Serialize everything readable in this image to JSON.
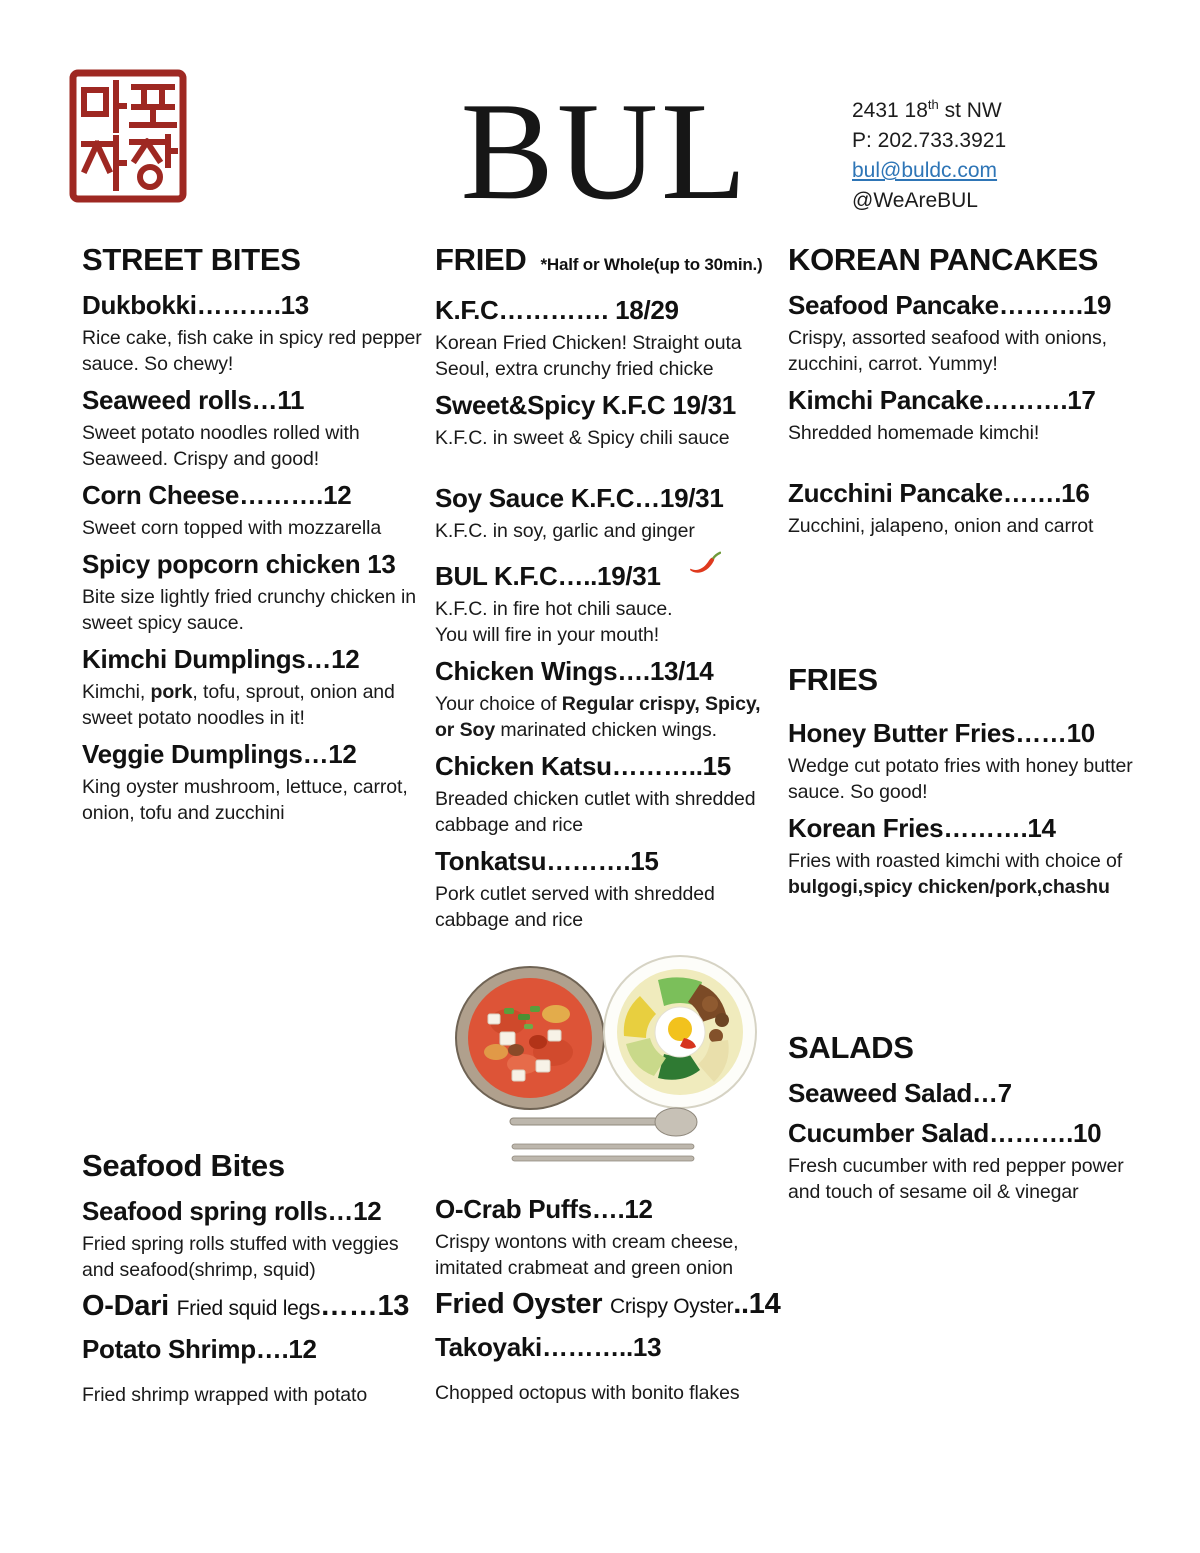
{
  "header": {
    "logo": {
      "icon": "korean-seal-stamp-icon",
      "text_top": "마포",
      "text_bottom": "자장",
      "color": "#9e2822"
    },
    "title": "BUL",
    "contact": {
      "address_pre": "2431 18",
      "address_sup": "th",
      "address_post": " st NW",
      "phone": "P: 202.733.3921",
      "email": "bul@buldc.com",
      "email_color": "#2e75b6",
      "social": "@WeAreBUL"
    }
  },
  "sections": [
    {
      "id": "street-bites",
      "title": "STREET BITES",
      "items": [
        {
          "name": "Dukbokki……….13",
          "desc": "Rice cake, fish cake in spicy red pepper sauce. So chewy!"
        },
        {
          "name": "Seaweed rolls…11",
          "desc": "Sweet potato noodles rolled with Seaweed. Crispy and good!"
        },
        {
          "name": "Corn Cheese……….12",
          "desc": "Sweet corn topped with mozzarella"
        },
        {
          "name": "Spicy popcorn chicken 13",
          "desc": "Bite size lightly fried crunchy chicken in sweet spicy sauce."
        },
        {
          "name": "Kimchi Dumplings…12",
          "desc_parts": [
            {
              "t": "Kimchi, "
            },
            {
              "t": "pork",
              "b": true
            },
            {
              "t": ", tofu, sprout, onion and sweet potato noodles in it!"
            }
          ]
        },
        {
          "name": "Veggie Dumplings…12",
          "desc": "King oyster mushroom, lettuce, carrot, onion, tofu and zucchini"
        }
      ]
    },
    {
      "id": "fried",
      "title": "FRIED",
      "note": "*Half or Whole(up to 30min.)",
      "items": [
        {
          "name": "K.F.C…………. 18/29",
          "desc": "Korean Fried Chicken! Straight outa Seoul, extra crunchy fried chicke"
        },
        {
          "name": "Sweet&Spicy K.F.C 19/31",
          "desc": "K.F.C. in sweet & Spicy chili sauce"
        },
        {
          "name": "Soy Sauce K.F.C…19/31",
          "desc": "K.F.C. in soy, garlic and ginger",
          "gap_before": true
        },
        {
          "name": "BUL K.F.C…..19/31",
          "icon": "chili-pepper-icon",
          "desc_lines": [
            "K.F.C. in fire hot chili sauce.",
            "You will fire in your mouth!"
          ]
        },
        {
          "name": "Chicken Wings….13/14",
          "desc_parts": [
            {
              "t": "Your choice of "
            },
            {
              "t": "Regular crispy, Spicy, or Soy",
              "b": true
            },
            {
              "t": " marinated chicken wings."
            }
          ]
        },
        {
          "name": "Chicken Katsu………..15",
          "desc": "Breaded chicken cutlet with shredded cabbage and rice"
        },
        {
          "name": "Tonkatsu……….15",
          "desc": "Pork cutlet served with shredded cabbage and rice"
        }
      ]
    },
    {
      "id": "korean-pancakes",
      "title": "KOREAN PANCAKES",
      "items": [
        {
          "name": "Seafood Pancake……….19",
          "desc": "Crispy, assorted seafood with onions, zucchini, carrot. Yummy!"
        },
        {
          "name": "Kimchi Pancake……….17",
          "desc": "Shredded homemade kimchi!"
        },
        {
          "name": "Zucchini Pancake…….16",
          "desc": "Zucchini, jalapeno, onion and carrot",
          "gap_before": true
        }
      ]
    },
    {
      "id": "fries",
      "title": "FRIES",
      "items": [
        {
          "name": "Honey Butter Fries……10",
          "desc": "Wedge cut potato fries with honey butter sauce. So good!"
        },
        {
          "name": "Korean Fries……….14",
          "desc_parts": [
            {
              "t": "Fries with roasted kimchi with choice of "
            },
            {
              "t": "bulgogi,spicy chicken/pork,chashu",
              "b": true
            }
          ]
        }
      ]
    },
    {
      "id": "salads",
      "title": "SALADS",
      "items": [
        {
          "name": "Seaweed Salad…7"
        },
        {
          "name": "Cucumber Salad……….10",
          "desc": "Fresh cucumber with red pepper power and touch of sesame oil & vinegar"
        }
      ]
    },
    {
      "id": "seafood-bites",
      "title": "Seafood Bites",
      "items": [
        {
          "name": "Seafood spring rolls…12",
          "desc": "Fried spring rolls stuffed with veggies and seafood(shrimp, squid)"
        },
        {
          "name_parts": [
            {
              "t": "O-Dari ",
              "s": "lg"
            },
            {
              "t": "Fried squid legs",
              "s": "sm"
            },
            {
              "t": "……13",
              "s": "lg"
            }
          ]
        },
        {
          "name": "Potato Shrimp….12",
          "desc": "Fried shrimp wrapped with potato",
          "desc_gap": true
        }
      ]
    },
    {
      "id": "seafood-bites-extra",
      "title": null,
      "items": [
        {
          "name": "O-Crab Puffs….12",
          "desc": "Crispy wontons with cream cheese, imitated crabmeat and green onion"
        },
        {
          "name_parts": [
            {
              "t": "Fried Oyster ",
              "s": "lg"
            },
            {
              "t": "Crispy Oyster",
              "s": "sm"
            },
            {
              "t": "..14",
              "s": "lg"
            }
          ]
        },
        {
          "name": "Takoyaki………..13",
          "desc": "Chopped octopus with bonito flakes",
          "desc_gap": true
        }
      ]
    }
  ],
  "illustration": {
    "alt": "watercolor kimchi stew bowl, bibimbap plate with fried egg, spoon and chopsticks"
  }
}
